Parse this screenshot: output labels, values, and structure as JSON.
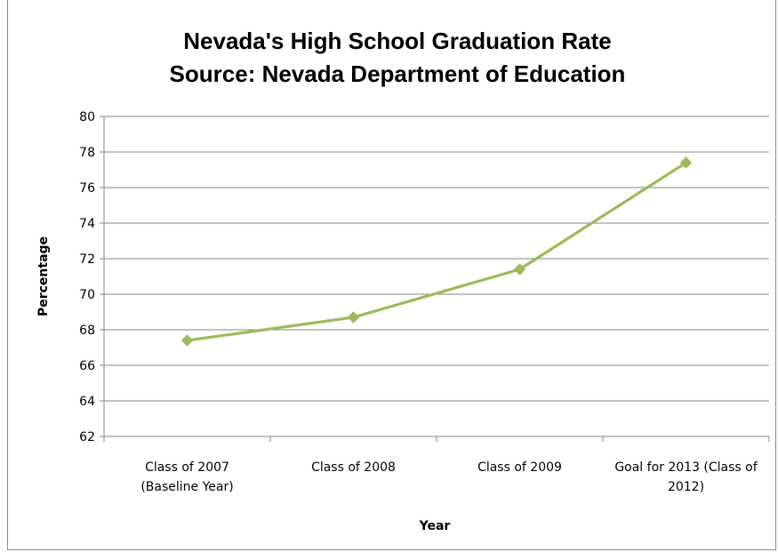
{
  "chart_data": {
    "type": "line",
    "title_lines": [
      "Nevada's High School Graduation Rate",
      "Source: Nevada Department of Education"
    ],
    "xlabel": "Year",
    "ylabel": "Percentage",
    "categories": [
      [
        "Class of 2007",
        "(Baseline Year)"
      ],
      [
        "Class of 2008"
      ],
      [
        "Class of 2009"
      ],
      [
        "Goal for 2013 (Class of",
        "2012)"
      ]
    ],
    "series": [
      {
        "values": [
          67.4,
          68.7,
          71.4,
          77.4
        ],
        "color": "#9bbb59"
      }
    ],
    "ylim": [
      62,
      80
    ],
    "yticks": [
      62,
      64,
      66,
      68,
      70,
      72,
      74,
      76,
      78,
      80
    ],
    "grid": true,
    "legend": "none"
  }
}
